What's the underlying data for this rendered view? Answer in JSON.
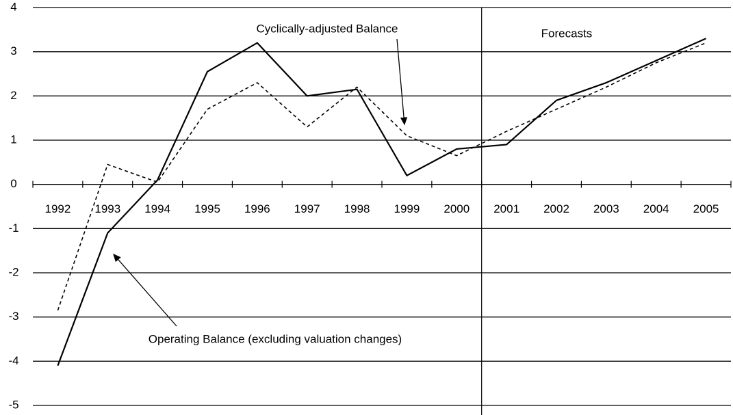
{
  "chart_data": {
    "type": "line",
    "categories": [
      "1992",
      "1993",
      "1994",
      "1995",
      "1996",
      "1997",
      "1998",
      "1999",
      "2000",
      "2001",
      "2002",
      "2003",
      "2004",
      "2005"
    ],
    "series": [
      {
        "name": "Operating Balance (excluding valuation changes)",
        "color": "#000000",
        "dash": "solid",
        "values": [
          -4.1,
          -1.1,
          0.1,
          2.55,
          3.2,
          2.0,
          2.15,
          0.2,
          0.8,
          0.9,
          1.9,
          2.3,
          2.8,
          3.3
        ]
      },
      {
        "name": "Cyclically-adjusted Balance",
        "color": "#000000",
        "dash": "dashed",
        "values": [
          -2.85,
          0.45,
          0.05,
          1.7,
          2.3,
          1.3,
          2.2,
          1.1,
          0.65,
          1.2,
          1.7,
          2.2,
          2.75,
          3.2
        ]
      }
    ],
    "annotation": "Forecasts",
    "ylim": [
      -5,
      4
    ],
    "yticks": [
      -5,
      -4,
      -3,
      -2,
      -1,
      0,
      1,
      2,
      3,
      4
    ],
    "grid": true
  }
}
